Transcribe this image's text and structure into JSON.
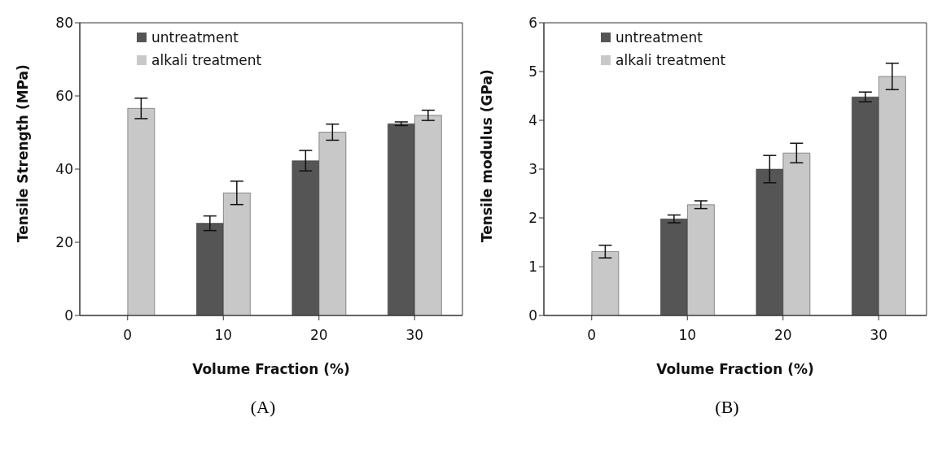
{
  "chart_data": [
    {
      "type": "bar",
      "categories": [
        "0",
        "10",
        "20",
        "30"
      ],
      "xlabel": "Volume Fraction (%)",
      "ylabel": "Tensile Strength (MPa)",
      "ylim": [
        0,
        80
      ],
      "yticks": [
        0,
        20,
        40,
        60,
        80
      ],
      "legend": "top left",
      "grid": false,
      "annotations": [
        "(A)"
      ],
      "series": [
        {
          "name": "untreatment",
          "color": "#555555",
          "values": [
            null,
            25.2,
            42.3,
            52.4
          ],
          "errors": [
            null,
            2,
            2.8,
            0.5
          ]
        },
        {
          "name": "alkali treatment",
          "color": "#c8c8c8",
          "values": [
            56.6,
            33.5,
            50.1,
            54.7
          ],
          "errors": [
            2.8,
            3.2,
            2.2,
            1.4
          ]
        }
      ]
    },
    {
      "type": "bar",
      "categories": [
        "0",
        "10",
        "20",
        "30"
      ],
      "xlabel": "Volume Fraction (%)",
      "ylabel": "Tensile modulus (GPa)",
      "ylim": [
        0,
        6
      ],
      "yticks": [
        0,
        1,
        2,
        3,
        4,
        5,
        6
      ],
      "legend": "top left",
      "grid": false,
      "annotations": [
        "(B)"
      ],
      "series": [
        {
          "name": "untreatment",
          "color": "#555555",
          "values": [
            null,
            1.98,
            3.0,
            4.48
          ],
          "errors": [
            null,
            0.08,
            0.28,
            0.1
          ]
        },
        {
          "name": "alkali treatment",
          "color": "#c8c8c8",
          "values": [
            1.31,
            2.27,
            3.33,
            4.9
          ],
          "errors": [
            0.13,
            0.08,
            0.2,
            0.27
          ]
        }
      ]
    }
  ]
}
